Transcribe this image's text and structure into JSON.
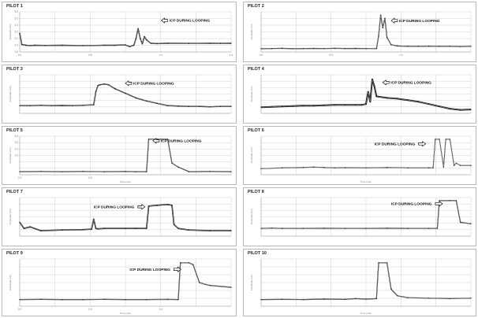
{
  "chart_data": [
    {
      "type": "line",
      "title": "PILOT 1",
      "annotation": "ICP DURING LOOPING",
      "yticks": [
        "6.0",
        "5.0",
        "4.0",
        "3.0",
        "2.0",
        "1.0",
        "0.0"
      ],
      "xticks": [
        "0.0",
        "",
        "0.5",
        "",
        "1.0",
        "",
        "1.5"
      ],
      "ylabel": "Amplitude (cm)",
      "xlabel": "",
      "x": [
        0.0,
        0.01,
        0.03,
        0.05,
        0.07,
        0.12,
        0.2,
        0.3,
        0.4,
        0.45,
        0.5,
        0.52,
        0.54,
        0.55,
        0.56,
        0.57,
        0.58,
        0.59,
        0.6,
        0.62,
        0.65,
        0.7,
        0.8,
        0.9,
        0.95,
        1.0
      ],
      "y": [
        2.8,
        1.1,
        1.0,
        0.95,
        1.0,
        0.98,
        1.0,
        0.95,
        1.0,
        1.0,
        1.05,
        0.8,
        1.0,
        2.0,
        3.5,
        2.0,
        1.2,
        2.3,
        1.8,
        1.3,
        1.25,
        1.3,
        1.28,
        1.3,
        1.28,
        1.3
      ],
      "thick": 1.4,
      "ann_x": 0.67,
      "ann_y": 4.7,
      "arrow_dir": "left",
      "ylim": [
        0,
        6
      ]
    },
    {
      "type": "line",
      "title": "PILOT 2",
      "annotation": "ICP DURING LOOPING",
      "yticks": [
        "",
        "",
        "",
        "",
        "",
        "",
        ""
      ],
      "xticks": [
        "0.0",
        "",
        "0.5",
        "",
        "1.0",
        "",
        ""
      ],
      "ylabel": "Amplitude (cm)",
      "xlabel": "",
      "x": [
        0.0,
        0.05,
        0.1,
        0.15,
        0.2,
        0.25,
        0.3,
        0.35,
        0.4,
        0.45,
        0.5,
        0.55,
        0.56,
        0.57,
        0.58,
        0.59,
        0.6,
        0.62,
        0.65,
        0.7,
        0.75,
        0.8,
        0.85,
        0.9,
        0.95,
        1.0
      ],
      "y": [
        0.4,
        0.42,
        0.45,
        0.4,
        0.42,
        0.44,
        0.42,
        0.45,
        0.43,
        0.44,
        0.42,
        0.42,
        2.0,
        4.6,
        3.0,
        4.2,
        1.8,
        0.9,
        0.75,
        0.7,
        0.7,
        0.72,
        0.7,
        0.7,
        0.68,
        0.7
      ],
      "thick": 1.2,
      "ann_x": 0.62,
      "ann_y": 3.9,
      "arrow_dir": "left",
      "ylim": [
        0,
        5
      ]
    },
    {
      "type": "line",
      "title": "PILOT 3",
      "annotation": "ICP DURING LOOPING",
      "yticks": [
        "",
        "",
        "",
        "",
        "",
        "",
        ""
      ],
      "xticks": [
        "",
        "",
        "",
        "",
        "",
        "",
        ""
      ],
      "ylabel": "Amplitude (cm)",
      "xlabel": "",
      "x": [
        0.0,
        0.05,
        0.1,
        0.15,
        0.2,
        0.25,
        0.3,
        0.35,
        0.36,
        0.37,
        0.38,
        0.4,
        0.42,
        0.45,
        0.5,
        0.55,
        0.6,
        0.65,
        0.7,
        0.75,
        0.8,
        0.85,
        0.9,
        0.95,
        1.0
      ],
      "y": [
        1.0,
        1.0,
        1.05,
        1.0,
        1.02,
        1.0,
        1.05,
        1.1,
        2.8,
        3.6,
        3.7,
        3.8,
        3.7,
        3.2,
        2.6,
        2.0,
        1.6,
        1.3,
        1.0,
        0.95,
        0.9,
        0.9,
        0.85,
        0.9,
        0.9
      ],
      "thick": 1.4,
      "ann_x": 0.5,
      "ann_y": 3.9,
      "arrow_dir": "left",
      "ylim": [
        0,
        5
      ]
    },
    {
      "type": "line",
      "title": "PILOT 4",
      "annotation": "ICP DURING LOOPING",
      "yticks": [
        "",
        "",
        "",
        "",
        "",
        "",
        ""
      ],
      "xticks": [
        "",
        "",
        "",
        "",
        "",
        "",
        ""
      ],
      "ylabel": "Amplitude (cm)",
      "xlabel": "",
      "x": [
        0.0,
        0.05,
        0.1,
        0.15,
        0.2,
        0.25,
        0.3,
        0.35,
        0.4,
        0.45,
        0.48,
        0.5,
        0.51,
        0.52,
        0.53,
        0.54,
        0.55,
        0.6,
        0.65,
        0.7,
        0.75,
        0.8,
        0.85,
        0.9,
        0.95,
        1.0
      ],
      "y": [
        0.8,
        0.85,
        0.9,
        0.95,
        1.0,
        1.0,
        1.05,
        1.1,
        1.1,
        1.1,
        1.1,
        1.2,
        2.8,
        1.5,
        4.4,
        3.5,
        2.2,
        2.0,
        1.9,
        1.7,
        1.5,
        1.2,
        0.9,
        0.6,
        0.45,
        0.5
      ],
      "thick": 2.0,
      "ann_x": 0.58,
      "ann_y": 4.0,
      "arrow_dir": "left",
      "ylim": [
        0,
        5
      ]
    },
    {
      "type": "line",
      "title": "PILOT 5",
      "annotation": "ICP DURING LOOPING",
      "yticks": [
        "4.0",
        "3.0",
        "2.0",
        "1.0",
        "",
        "",
        ""
      ],
      "xticks": [
        "0.0",
        "",
        "0.5",
        "",
        "",
        "",
        ""
      ],
      "ylabel": "Amplitude (cm)",
      "xlabel": "Time (min)",
      "x": [
        0.0,
        0.1,
        0.2,
        0.3,
        0.4,
        0.5,
        0.55,
        0.6,
        0.61,
        0.65,
        0.7,
        0.72,
        0.75,
        0.8,
        0.9,
        1.0
      ],
      "y": [
        0.4,
        0.42,
        0.4,
        0.42,
        0.4,
        0.42,
        0.4,
        0.4,
        4.6,
        4.6,
        4.6,
        1.5,
        1.0,
        0.4,
        0.42,
        0.4
      ],
      "thick": 1.2,
      "ann_x": 0.63,
      "ann_y": 4.4,
      "arrow_dir": "left",
      "ylim": [
        0,
        5
      ]
    },
    {
      "type": "line",
      "title": "PILOT 6",
      "annotation": "ICP DURING LOOPING",
      "yticks": [
        "",
        "",
        "",
        "",
        "",
        "",
        ""
      ],
      "xticks": [
        "",
        "",
        "",
        "",
        "",
        "",
        ""
      ],
      "ylabel": "Amplitude (cm)",
      "xlabel": "Time (min)",
      "x": [
        0.0,
        0.1,
        0.2,
        0.25,
        0.3,
        0.35,
        0.4,
        0.5,
        0.6,
        0.7,
        0.8,
        0.82,
        0.83,
        0.85,
        0.87,
        0.88,
        0.9,
        0.92,
        0.93,
        0.95,
        1.0
      ],
      "y": [
        0.8,
        0.9,
        0.95,
        1.0,
        0.95,
        0.9,
        0.92,
        0.9,
        0.95,
        0.9,
        0.9,
        0.9,
        4.6,
        4.6,
        1.0,
        4.6,
        4.6,
        1.2,
        1.5,
        1.2,
        1.2
      ],
      "thick": 1.0,
      "ann_x": 0.54,
      "ann_y": 4.0,
      "arrow_dir": "right",
      "ylim": [
        0,
        5
      ]
    },
    {
      "type": "line",
      "title": "PILOT 7",
      "annotation": "ICP DURING LOOPING",
      "yticks": [
        "",
        "",
        "",
        "",
        "",
        "",
        ""
      ],
      "xticks": [
        "",
        "",
        "",
        "",
        "",
        "",
        ""
      ],
      "ylabel": "Amplitude (cm)",
      "xlabel": "",
      "x": [
        0.0,
        0.02,
        0.05,
        0.1,
        0.2,
        0.3,
        0.34,
        0.35,
        0.36,
        0.37,
        0.4,
        0.5,
        0.55,
        0.6,
        0.61,
        0.65,
        0.7,
        0.72,
        0.73,
        0.75,
        0.8,
        0.9,
        1.0
      ],
      "y": [
        1.8,
        1.0,
        1.2,
        0.7,
        0.8,
        0.85,
        0.9,
        2.2,
        1.0,
        0.95,
        1.0,
        1.0,
        1.0,
        1.0,
        3.9,
        4.0,
        4.1,
        4.0,
        1.5,
        1.0,
        0.8,
        0.7,
        0.7
      ],
      "thick": 1.6,
      "ann_x": 0.35,
      "ann_y": 3.8,
      "arrow_dir": "right",
      "ylim": [
        0,
        5
      ]
    },
    {
      "type": "line",
      "title": "PILOT 8",
      "annotation": "ICP DURING LOOPING",
      "yticks": [
        "",
        "",
        "",
        "",
        "",
        "",
        ""
      ],
      "xticks": [
        "",
        "",
        "",
        "",
        "",
        "",
        ""
      ],
      "ylabel": "Amplitude (cm)",
      "xlabel": "",
      "x": [
        0.0,
        0.05,
        0.1,
        0.2,
        0.3,
        0.4,
        0.5,
        0.6,
        0.7,
        0.8,
        0.84,
        0.85,
        0.9,
        0.93,
        0.95,
        1.0
      ],
      "y": [
        1.0,
        1.05,
        1.0,
        1.0,
        1.02,
        1.0,
        1.0,
        1.02,
        1.0,
        1.0,
        1.0,
        4.6,
        4.6,
        4.6,
        1.8,
        1.6
      ],
      "thick": 1.2,
      "ann_x": 0.62,
      "ann_y": 4.2,
      "arrow_dir": "right",
      "ylim": [
        0,
        5
      ]
    },
    {
      "type": "line",
      "title": "PILOT 9",
      "annotation": "ICP DURING LOOPING",
      "yticks": [
        "",
        "",
        "",
        "",
        "",
        "",
        ""
      ],
      "xticks": [
        "0.0",
        "",
        "0.5",
        "",
        "1.0",
        "",
        ""
      ],
      "ylabel": "Amplitude (cm)",
      "xlabel": "Time (min)",
      "x": [
        0.0,
        0.1,
        0.2,
        0.3,
        0.4,
        0.5,
        0.6,
        0.7,
        0.75,
        0.76,
        0.8,
        0.82,
        0.85,
        0.88,
        0.9,
        1.0
      ],
      "y": [
        0.7,
        0.72,
        0.7,
        0.7,
        0.72,
        0.7,
        0.7,
        0.72,
        0.7,
        4.6,
        4.6,
        4.4,
        2.5,
        2.3,
        2.2,
        2.0
      ],
      "thick": 1.2,
      "ann_x": 0.52,
      "ann_y": 3.9,
      "arrow_dir": "right",
      "ylim": [
        0,
        5
      ]
    },
    {
      "type": "line",
      "title": "PILOT 10",
      "annotation": "",
      "yticks": [
        "",
        "",
        "",
        "",
        "",
        "",
        ""
      ],
      "xticks": [
        "",
        "",
        "",
        "",
        "",
        "",
        ""
      ],
      "ylabel": "Amplitude (cm)",
      "xlabel": "Time (min)",
      "x": [
        0.0,
        0.1,
        0.2,
        0.3,
        0.4,
        0.45,
        0.5,
        0.55,
        0.56,
        0.6,
        0.62,
        0.65,
        0.7,
        0.8,
        0.9,
        1.0
      ],
      "y": [
        0.7,
        0.72,
        0.7,
        0.75,
        0.72,
        0.8,
        0.75,
        0.8,
        4.6,
        4.6,
        1.8,
        1.1,
        0.9,
        0.85,
        0.8,
        0.85
      ],
      "thick": 1.2,
      "ann_x": 0,
      "ann_y": 0,
      "arrow_dir": "",
      "ylim": [
        0,
        5
      ]
    }
  ]
}
